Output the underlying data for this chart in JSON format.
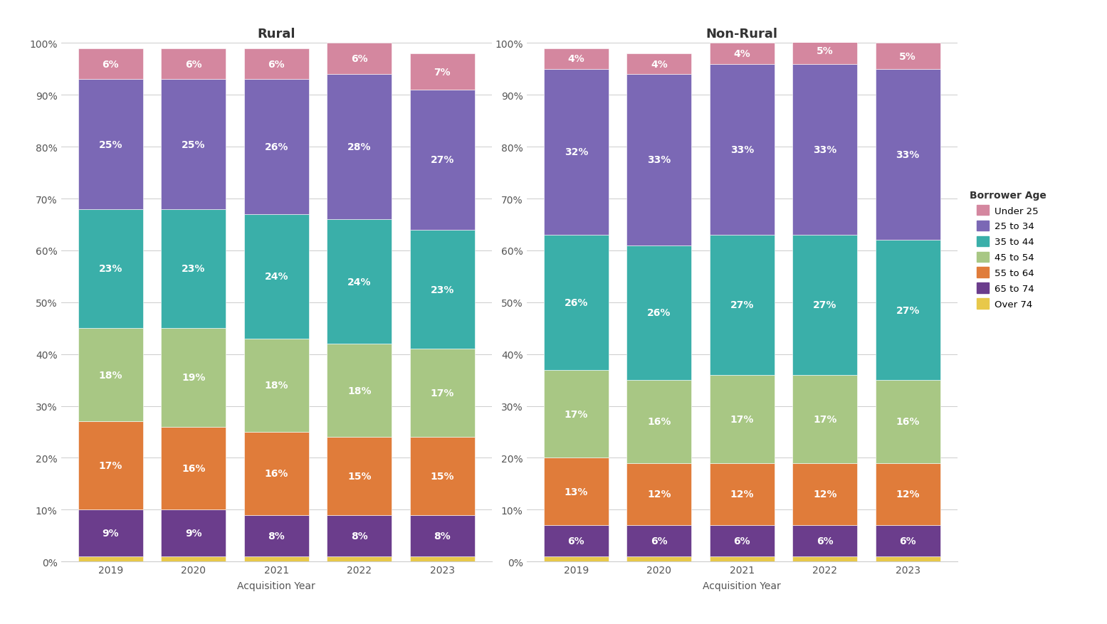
{
  "years": [
    "2019",
    "2020",
    "2021",
    "2022",
    "2023"
  ],
  "rural": {
    "Over 74": [
      1,
      1,
      1,
      1,
      1
    ],
    "65 to 74": [
      9,
      9,
      8,
      8,
      8
    ],
    "55 to 64": [
      17,
      16,
      16,
      15,
      15
    ],
    "45 to 54": [
      18,
      19,
      18,
      18,
      17
    ],
    "35 to 44": [
      23,
      23,
      24,
      24,
      23
    ],
    "25 to 34": [
      25,
      25,
      26,
      28,
      27
    ],
    "Under 25": [
      6,
      6,
      6,
      6,
      7
    ]
  },
  "rural_labels": {
    "Over 74": [
      "",
      "",
      "",
      "",
      ""
    ],
    "65 to 74": [
      "9%",
      "9%",
      "8%",
      "8%",
      "8%"
    ],
    "55 to 64": [
      "17%",
      "16%",
      "16%",
      "15%",
      "15%"
    ],
    "45 to 54": [
      "18%",
      "19%",
      "18%",
      "18%",
      "17%"
    ],
    "35 to 44": [
      "23%",
      "23%",
      "24%",
      "24%",
      "23%"
    ],
    "25 to 34": [
      "25%",
      "25%",
      "26%",
      "28%",
      "27%"
    ],
    "Under 25": [
      "6%",
      "6%",
      "6%",
      "6%",
      "7%"
    ]
  },
  "nonrural": {
    "Over 74": [
      1,
      1,
      1,
      1,
      1
    ],
    "65 to 74": [
      6,
      6,
      6,
      6,
      6
    ],
    "55 to 64": [
      13,
      12,
      12,
      12,
      12
    ],
    "45 to 54": [
      17,
      16,
      17,
      17,
      16
    ],
    "35 to 44": [
      26,
      26,
      27,
      27,
      27
    ],
    "25 to 34": [
      32,
      33,
      33,
      33,
      33
    ],
    "Under 25": [
      4,
      4,
      4,
      5,
      5
    ]
  },
  "nonrural_labels": {
    "Over 74": [
      "",
      "",
      "",
      "",
      ""
    ],
    "65 to 74": [
      "6%",
      "6%",
      "6%",
      "6%",
      "6%"
    ],
    "55 to 64": [
      "13%",
      "12%",
      "12%",
      "12%",
      "12%"
    ],
    "45 to 54": [
      "17%",
      "16%",
      "17%",
      "17%",
      "16%"
    ],
    "35 to 44": [
      "26%",
      "26%",
      "27%",
      "27%",
      "27%"
    ],
    "25 to 34": [
      "32%",
      "33%",
      "33%",
      "33%",
      "33%"
    ],
    "Under 25": [
      "4%",
      "4%",
      "4%",
      "5%",
      "5%"
    ]
  },
  "colors": {
    "Under 25": "#d4879f",
    "25 to 34": "#7b68b5",
    "35 to 44": "#3aafa9",
    "45 to 54": "#a8c784",
    "55 to 64": "#e07c3a",
    "65 to 74": "#6b3d8c",
    "Over 74": "#e8c84a"
  },
  "layer_order": [
    "Over 74",
    "65 to 74",
    "55 to 64",
    "45 to 54",
    "35 to 44",
    "25 to 34",
    "Under 25"
  ],
  "title_rural": "Rural",
  "title_nonrural": "Non-Rural",
  "xlabel": "Acquisition Year",
  "legend_title": "Borrower Age",
  "bg_color": "#ffffff",
  "bar_width": 0.78,
  "label_fontsize": 10,
  "title_fontsize": 13
}
